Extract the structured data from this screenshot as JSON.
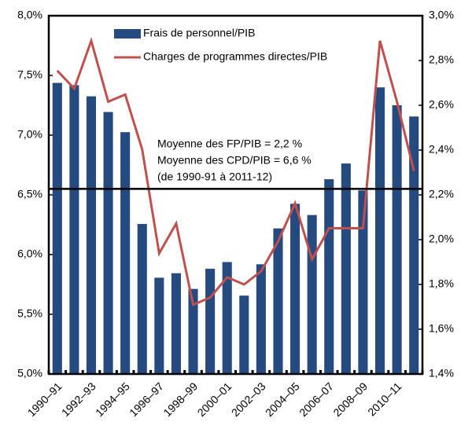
{
  "chart_data": {
    "type": "bar_line",
    "categories": [
      "1990–91",
      null,
      "1992–93",
      null,
      "1994–95",
      null,
      "1996–97",
      null,
      "1998–99",
      null,
      "2000–01",
      null,
      "2002–03",
      null,
      "2004–05",
      null,
      "2006–07",
      null,
      "2008–09",
      null,
      "2010–11",
      null
    ],
    "series": [
      {
        "name": "Frais de personnel/PIB",
        "type": "bar",
        "axis": "y2",
        "color": "#254a80",
        "values": [
          2.7,
          2.69,
          2.64,
          2.57,
          2.48,
          2.07,
          1.83,
          1.85,
          1.78,
          1.87,
          1.9,
          1.75,
          1.89,
          2.05,
          2.16,
          2.11,
          2.27,
          2.34,
          2.22,
          2.68,
          2.6,
          2.55
        ]
      },
      {
        "name": "Charges de programmes directes/PIB",
        "type": "line",
        "axis": "y",
        "color": "#c0504d",
        "values": [
          7.54,
          7.39,
          7.79,
          7.28,
          7.34,
          6.88,
          6.01,
          6.26,
          5.58,
          5.64,
          5.81,
          5.75,
          5.86,
          6.11,
          6.43,
          5.96,
          6.22,
          6.22,
          6.22,
          7.79,
          7.28,
          6.7
        ]
      }
    ],
    "ylim": [
      5.0,
      8.0
    ],
    "yticks": [
      {
        "value": 5.0,
        "label": "5,0%"
      },
      {
        "value": 5.5,
        "label": "5,5%"
      },
      {
        "value": 6.0,
        "label": "6,0%"
      },
      {
        "value": 6.5,
        "label": "6,5%"
      },
      {
        "value": 7.0,
        "label": "7,0%"
      },
      {
        "value": 7.5,
        "label": "7,5%"
      },
      {
        "value": 8.0,
        "label": "8,0%"
      }
    ],
    "y2lim": [
      1.4,
      3.0
    ],
    "y2ticks": [
      {
        "value": 1.4,
        "label": "1,4%"
      },
      {
        "value": 1.6,
        "label": "1,6%"
      },
      {
        "value": 1.8,
        "label": "1,8%"
      },
      {
        "value": 2.0,
        "label": "2,0%"
      },
      {
        "value": 2.2,
        "label": "2,2%"
      },
      {
        "value": 2.4,
        "label": "2,4%"
      },
      {
        "value": 2.6,
        "label": "2,6%"
      },
      {
        "value": 2.8,
        "label": "2,8%"
      },
      {
        "value": 3.0,
        "label": "3,0%"
      }
    ],
    "mean_line": 6.55,
    "annotations": [
      "Moyenne des FP/PIB = 2,2 %",
      "Moyenne des CPD/PIB = 6,6 %",
      "(de 1990-91 à 2011-12)"
    ]
  }
}
